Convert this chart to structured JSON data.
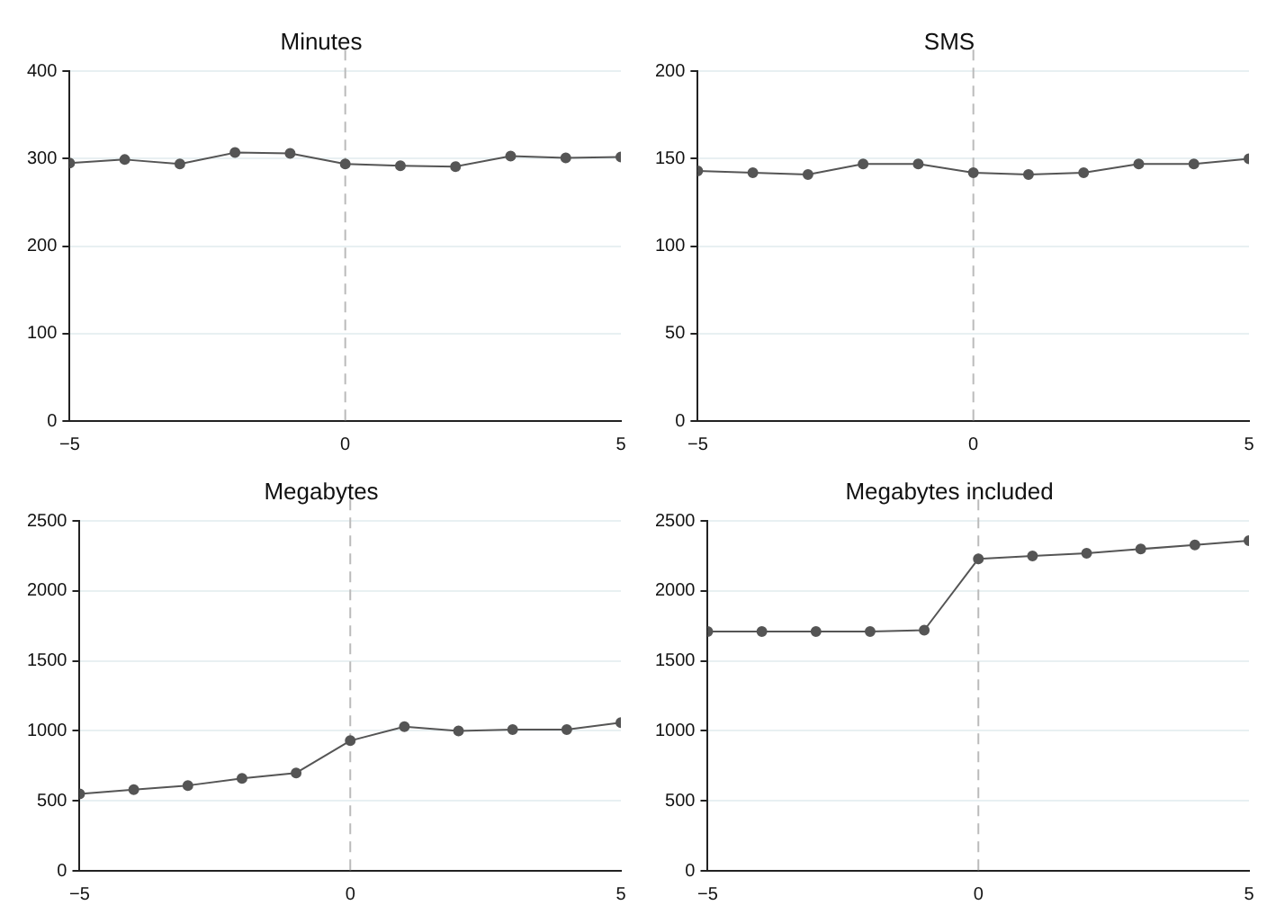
{
  "chart_data": [
    {
      "type": "line",
      "title": "Minutes",
      "x": [
        -5,
        -4,
        -3,
        -2,
        -1,
        0,
        1,
        2,
        3,
        4,
        5
      ],
      "series": [
        {
          "color": "#555555",
          "values": [
            295,
            299,
            294,
            307,
            306,
            294,
            292,
            291,
            303,
            301,
            302
          ]
        }
      ],
      "xlim": [
        -5,
        5
      ],
      "xticks": [
        -5,
        0,
        5
      ],
      "ylim": [
        0,
        400
      ],
      "yticks": [
        0,
        100,
        200,
        300,
        400
      ],
      "grid": "y",
      "marker": "circle",
      "line_style": "solid",
      "legend": false,
      "ref_lines": [
        {
          "axis": "x",
          "value": 0,
          "color": "#bbbbbb",
          "line_style": "dashed"
        }
      ]
    },
    {
      "type": "line",
      "title": "SMS",
      "x": [
        -5,
        -4,
        -3,
        -2,
        -1,
        0,
        1,
        2,
        3,
        4,
        5
      ],
      "series": [
        {
          "color": "#555555",
          "values": [
            143,
            142,
            141,
            147,
            147,
            142,
            141,
            142,
            147,
            147,
            150
          ]
        }
      ],
      "xlim": [
        -5,
        5
      ],
      "xticks": [
        -5,
        0,
        5
      ],
      "ylim": [
        0,
        200
      ],
      "yticks": [
        0,
        50,
        100,
        150,
        200
      ],
      "grid": "y",
      "marker": "circle",
      "line_style": "solid",
      "legend": false,
      "ref_lines": [
        {
          "axis": "x",
          "value": 0,
          "color": "#bbbbbb",
          "line_style": "dashed"
        }
      ]
    },
    {
      "type": "line",
      "title": "Megabytes",
      "x": [
        -5,
        -4,
        -3,
        -2,
        -1,
        0,
        1,
        2,
        3,
        4,
        5
      ],
      "series": [
        {
          "color": "#555555",
          "values": [
            550,
            580,
            610,
            660,
            700,
            930,
            1030,
            1000,
            1010,
            1010,
            1060
          ]
        }
      ],
      "xlim": [
        -5,
        5
      ],
      "xticks": [
        -5,
        0,
        5
      ],
      "ylim": [
        0,
        2500
      ],
      "yticks": [
        0,
        500,
        1000,
        1500,
        2000,
        2500
      ],
      "grid": "y",
      "marker": "circle",
      "line_style": "solid",
      "legend": false,
      "ref_lines": [
        {
          "axis": "x",
          "value": 0,
          "color": "#bbbbbb",
          "line_style": "dashed"
        }
      ]
    },
    {
      "type": "line",
      "title": "Megabytes included",
      "x": [
        -5,
        -4,
        -3,
        -2,
        -1,
        0,
        1,
        2,
        3,
        4,
        5
      ],
      "series": [
        {
          "color": "#555555",
          "values": [
            1710,
            1710,
            1710,
            1710,
            1720,
            2230,
            2250,
            2270,
            2300,
            2330,
            2360
          ]
        }
      ],
      "xlim": [
        -5,
        5
      ],
      "xticks": [
        -5,
        0,
        5
      ],
      "ylim": [
        0,
        2500
      ],
      "yticks": [
        0,
        500,
        1000,
        1500,
        2000,
        2500
      ],
      "grid": "y",
      "marker": "circle",
      "line_style": "solid",
      "legend": false,
      "ref_lines": [
        {
          "axis": "x",
          "value": 0,
          "color": "#bbbbbb",
          "line_style": "dashed"
        }
      ]
    }
  ]
}
